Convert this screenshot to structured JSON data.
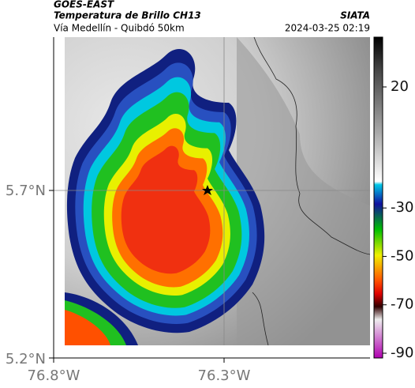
{
  "header": {
    "source": "GOES-EAST",
    "product": "Temperatura de Brillo CH13",
    "region": "Vía Medellín - Quibdó 50km",
    "agency": "SIATA",
    "timestamp": "2024-03-25 02:19"
  },
  "axes": {
    "lat_labels": [
      "5.7°N",
      "5.2°N"
    ],
    "lon_labels": [
      "76.8°W",
      "76.3°W"
    ]
  },
  "colorbar": {
    "ticks": [
      20,
      -30,
      -50,
      -70,
      -90
    ]
  }
}
